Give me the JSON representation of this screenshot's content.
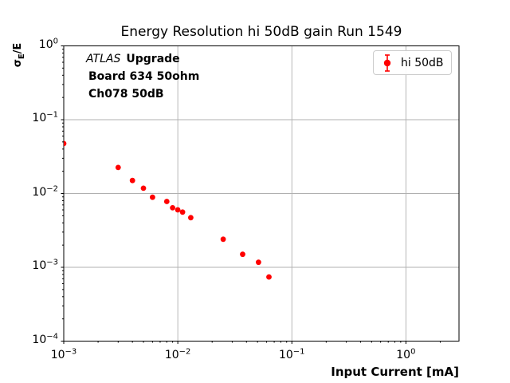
{
  "chart_data": {
    "type": "scatter",
    "title": "Energy Resolution hi 50dB gain Run 1549",
    "xlabel": "Input Current [mA]",
    "ylabel": "σE/E",
    "ylabel_parts": {
      "head": "σ",
      "sub": "E",
      "tail": "/E"
    },
    "xscale": "log",
    "yscale": "log",
    "xlim": [
      0.001,
      2.92
    ],
    "ylim": [
      0.0001,
      1.0
    ],
    "x_major_tick_exponents": [
      -3,
      -2,
      -1,
      0
    ],
    "y_major_tick_exponents": [
      0,
      -1,
      -2,
      -3,
      -4
    ],
    "grid": true,
    "grid_color": "#b0b0b0",
    "axis_color": "#000000",
    "legend_position": "upper right",
    "annotation": {
      "atlas": "ATLAS",
      "upgrade": "Upgrade",
      "line2": "Board 634 50ohm",
      "line3": "Ch078 50dB"
    },
    "series": [
      {
        "name": "hi 50dB",
        "color": "#ff0000",
        "marker": "circle-with-errorbar",
        "x": [
          0.001,
          0.003,
          0.004,
          0.005,
          0.006,
          0.008,
          0.009,
          0.01,
          0.011,
          0.013,
          0.025,
          0.037,
          0.051,
          0.063
        ],
        "y": [
          0.0475,
          0.0225,
          0.015,
          0.0118,
          0.0089,
          0.0078,
          0.0064,
          0.006,
          0.0056,
          0.0047,
          0.0024,
          0.0015,
          0.00117,
          0.00074
        ]
      }
    ]
  }
}
